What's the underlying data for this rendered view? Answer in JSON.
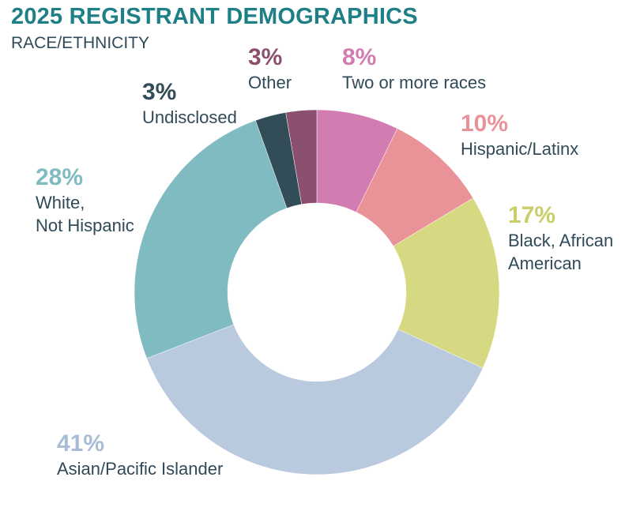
{
  "header": {
    "title": "2025 REGISTRANT DEMOGRAPHICS",
    "subtitle": "RACE/ETHNICITY"
  },
  "chart_data": {
    "type": "pie",
    "variant": "donut",
    "title": "2025 REGISTRANT DEMOGRAPHICS",
    "subtitle": "RACE/ETHNICITY",
    "unit": "%",
    "slices": [
      {
        "key": "tworaces",
        "label": "Two or more races",
        "value": 8,
        "value_label": "8%",
        "color": "#d27db2"
      },
      {
        "key": "hispanic",
        "label": "Hispanic/Latinx",
        "value": 10,
        "value_label": "10%",
        "color": "#e99297"
      },
      {
        "key": "black",
        "label": "Black, African\nAmerican",
        "value": 17,
        "value_label": "17%",
        "color": "#d7d982"
      },
      {
        "key": "asian",
        "label": "Asian/Pacific Islander",
        "value": 41,
        "value_label": "41%",
        "color": "#b9c9de"
      },
      {
        "key": "white",
        "label": "White,\nNot Hispanic",
        "value": 28,
        "value_label": "28%",
        "color": "#7fbbc1"
      },
      {
        "key": "undisclosed",
        "label": "Undisclosed",
        "value": 3,
        "value_label": "3%",
        "color": "#334d58"
      },
      {
        "key": "other",
        "label": "Other",
        "value": 3,
        "value_label": "3%",
        "color": "#8b5070"
      }
    ]
  }
}
